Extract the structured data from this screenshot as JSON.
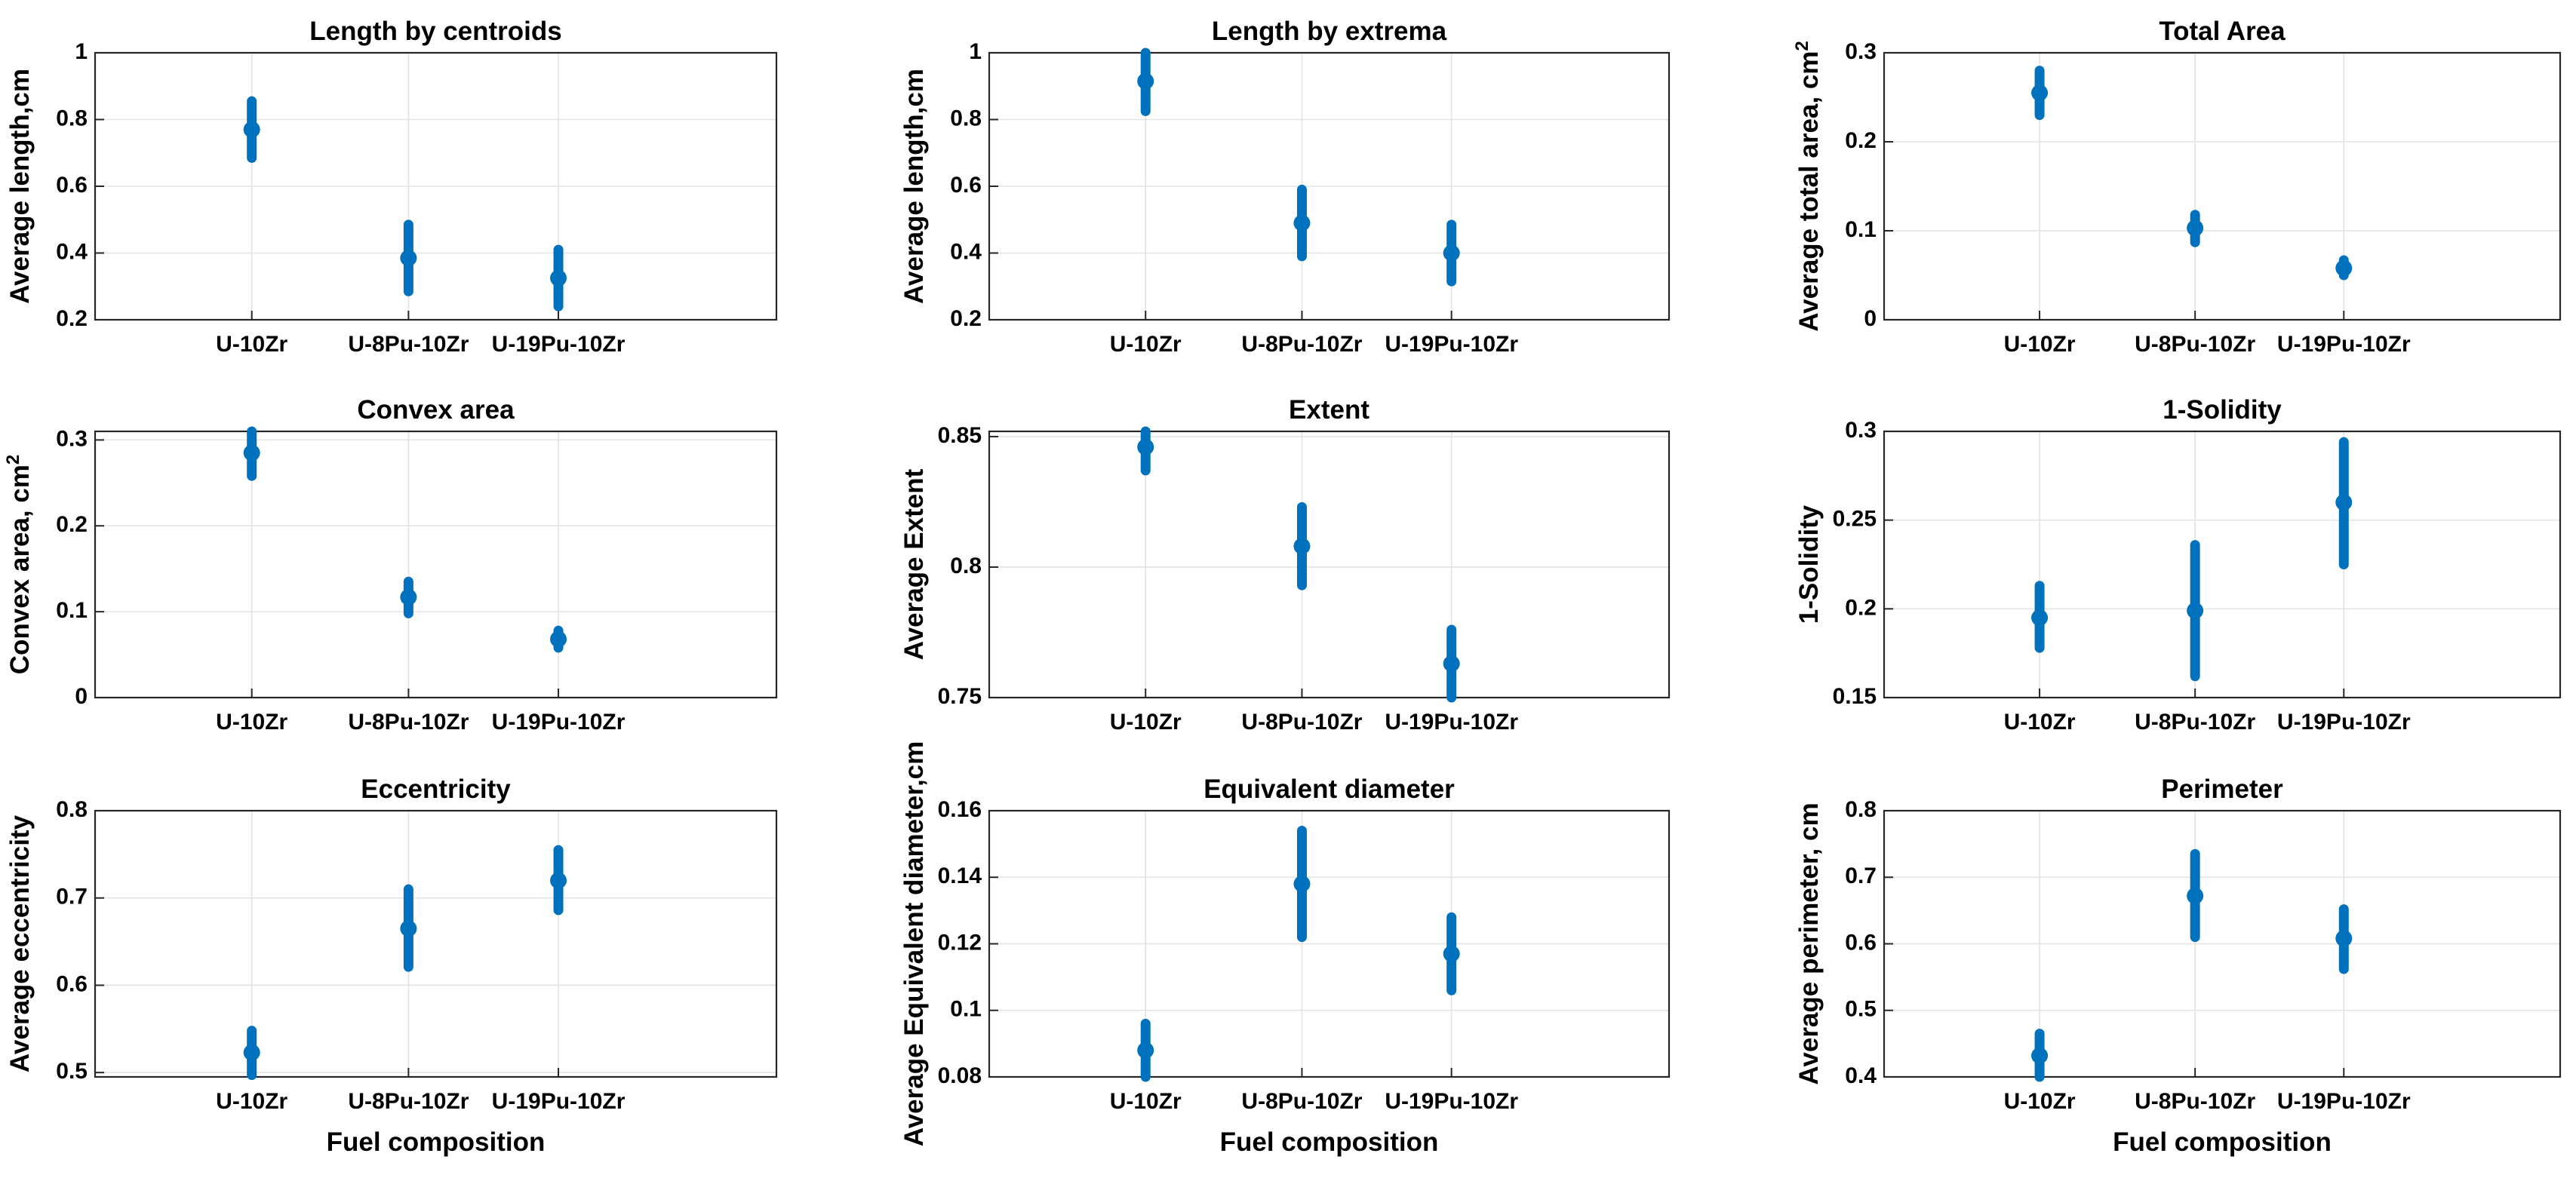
{
  "figure": {
    "xlabel": "Fuel composition",
    "categories": [
      "U-10Zr",
      "U-8Pu-10Zr",
      "U-19Pu-10Zr"
    ],
    "series_color": "#0072bd"
  },
  "chart_data": [
    {
      "type": "scatter",
      "title": "Length by centroids",
      "ylabel": "Average length,cm",
      "ylabel_sup": "",
      "xlabel": "",
      "categories": [
        "U-10Zr",
        "U-8Pu-10Zr",
        "U-19Pu-10Zr"
      ],
      "values": [
        0.77,
        0.385,
        0.325
      ],
      "err_low": [
        0.685,
        0.285,
        0.24
      ],
      "err_high": [
        0.855,
        0.485,
        0.41
      ],
      "ylim": [
        0.2,
        1
      ],
      "yticks": [
        0.2,
        0.4,
        0.6,
        0.8,
        1
      ],
      "ytick_labels": [
        "0.2",
        "0.4",
        "0.6",
        "0.8",
        "1"
      ]
    },
    {
      "type": "scatter",
      "title": "Length by extrema",
      "ylabel": "Average length,cm",
      "ylabel_sup": "",
      "xlabel": "",
      "categories": [
        "U-10Zr",
        "U-8Pu-10Zr",
        "U-19Pu-10Zr"
      ],
      "values": [
        0.915,
        0.49,
        0.4
      ],
      "err_low": [
        0.825,
        0.39,
        0.315
      ],
      "err_high": [
        1.0,
        0.59,
        0.485
      ],
      "ylim": [
        0.2,
        1
      ],
      "yticks": [
        0.2,
        0.4,
        0.6,
        0.8,
        1
      ],
      "ytick_labels": [
        "0.2",
        "0.4",
        "0.6",
        "0.8",
        "1"
      ]
    },
    {
      "type": "scatter",
      "title": "Total Area",
      "ylabel": "Average total area, cm",
      "ylabel_sup": "2",
      "xlabel": "",
      "categories": [
        "U-10Zr",
        "U-8Pu-10Zr",
        "U-19Pu-10Zr"
      ],
      "values": [
        0.255,
        0.103,
        0.058
      ],
      "err_low": [
        0.23,
        0.087,
        0.05
      ],
      "err_high": [
        0.28,
        0.118,
        0.067
      ],
      "ylim": [
        0,
        0.3
      ],
      "yticks": [
        0,
        0.1,
        0.2,
        0.3
      ],
      "ytick_labels": [
        "0",
        "0.1",
        "0.2",
        "0.3"
      ]
    },
    {
      "type": "scatter",
      "title": "Convex area",
      "ylabel": "Convex area, cm",
      "ylabel_sup": "2",
      "xlabel": "",
      "categories": [
        "U-10Zr",
        "U-8Pu-10Zr",
        "U-19Pu-10Zr"
      ],
      "values": [
        0.285,
        0.117,
        0.068
      ],
      "err_low": [
        0.258,
        0.098,
        0.058
      ],
      "err_high": [
        0.312,
        0.135,
        0.078
      ],
      "ylim": [
        0,
        0.31
      ],
      "yticks": [
        0,
        0.1,
        0.2,
        0.3
      ],
      "ytick_labels": [
        "0",
        "0.1",
        "0.2",
        "0.3"
      ]
    },
    {
      "type": "scatter",
      "title": "Extent",
      "ylabel": "Average Extent",
      "ylabel_sup": "",
      "xlabel": "",
      "categories": [
        "U-10Zr",
        "U-8Pu-10Zr",
        "U-19Pu-10Zr"
      ],
      "values": [
        0.846,
        0.808,
        0.763
      ],
      "err_low": [
        0.837,
        0.793,
        0.75
      ],
      "err_high": [
        0.855,
        0.823,
        0.776
      ],
      "ylim": [
        0.75,
        0.852
      ],
      "yticks": [
        0.75,
        0.8,
        0.85
      ],
      "ytick_labels": [
        "0.75",
        "0.8",
        "0.85"
      ]
    },
    {
      "type": "scatter",
      "title": "1-Solidity",
      "ylabel": "1-Solidity",
      "ylabel_sup": "",
      "xlabel": "",
      "categories": [
        "U-10Zr",
        "U-8Pu-10Zr",
        "U-19Pu-10Zr"
      ],
      "values": [
        0.195,
        0.199,
        0.26
      ],
      "err_low": [
        0.178,
        0.162,
        0.225
      ],
      "err_high": [
        0.213,
        0.236,
        0.294
      ],
      "ylim": [
        0.15,
        0.3
      ],
      "yticks": [
        0.15,
        0.2,
        0.25,
        0.3
      ],
      "ytick_labels": [
        "0.15",
        "0.2",
        "0.25",
        "0.3"
      ]
    },
    {
      "type": "scatter",
      "title": "Eccentricity",
      "ylabel": "Average eccentricity",
      "ylabel_sup": "",
      "xlabel": "Fuel composition",
      "categories": [
        "U-10Zr",
        "U-8Pu-10Zr",
        "U-19Pu-10Zr"
      ],
      "values": [
        0.523,
        0.665,
        0.72
      ],
      "err_low": [
        0.497,
        0.621,
        0.686
      ],
      "err_high": [
        0.548,
        0.71,
        0.755
      ],
      "ylim": [
        0.495,
        0.8
      ],
      "yticks": [
        0.5,
        0.6,
        0.7,
        0.8
      ],
      "ytick_labels": [
        "0.5",
        "0.6",
        "0.7",
        "0.8"
      ]
    },
    {
      "type": "scatter",
      "title": "Equivalent diameter",
      "ylabel": "Average Equivalent diameter,cm",
      "ylabel_sup": "",
      "xlabel": "Fuel composition",
      "categories": [
        "U-10Zr",
        "U-8Pu-10Zr",
        "U-19Pu-10Zr"
      ],
      "values": [
        0.088,
        0.138,
        0.117
      ],
      "err_low": [
        0.08,
        0.122,
        0.106
      ],
      "err_high": [
        0.096,
        0.154,
        0.128
      ],
      "ylim": [
        0.08,
        0.16
      ],
      "yticks": [
        0.08,
        0.1,
        0.12,
        0.14,
        0.16
      ],
      "ytick_labels": [
        "0.08",
        "0.1",
        "0.12",
        "0.14",
        "0.16"
      ]
    },
    {
      "type": "scatter",
      "title": "Perimeter",
      "ylabel": "Average perimeter, cm",
      "ylabel_sup": "",
      "xlabel": "Fuel composition",
      "categories": [
        "U-10Zr",
        "U-8Pu-10Zr",
        "U-19Pu-10Zr"
      ],
      "values": [
        0.432,
        0.672,
        0.608
      ],
      "err_low": [
        0.4,
        0.61,
        0.562
      ],
      "err_high": [
        0.465,
        0.735,
        0.652
      ],
      "ylim": [
        0.4,
        0.8
      ],
      "yticks": [
        0.4,
        0.5,
        0.6,
        0.7,
        0.8
      ],
      "ytick_labels": [
        "0.4",
        "0.5",
        "0.6",
        "0.7",
        "0.8"
      ]
    }
  ]
}
